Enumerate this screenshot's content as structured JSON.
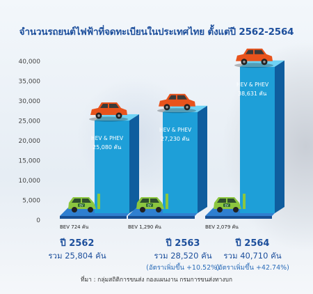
{
  "title": "จำนวนรถยนต์ไฟฟ้าที่จดทะเบียนในประเทศไทย ตั้งแต่ปี 2562-2564",
  "source": "ที่มา : กลุ่มสถิติการขนส่ง กองแผนงาน กรมการขนส่งทางบก",
  "colors": {
    "bar_front": "#1e9fd8",
    "bar_side": "#0f5d9e",
    "bar_top": "#6fd3f5",
    "title": "#1d4f9c",
    "car_orange": "#e8531c",
    "ev_green": "#8cc63f"
  },
  "icons": [
    "orange-suv-car-icon",
    "green-ev-car-icon"
  ],
  "chart_data": {
    "type": "bar",
    "title": "จำนวนรถยนต์ไฟฟ้าที่จดทะเบียนในประเทศไทย ตั้งแต่ปี 2562-2564",
    "categories": [
      "ปี 2562",
      "ปี 2563",
      "ปี 2564"
    ],
    "ylim": [
      0,
      40000
    ],
    "yticks": [
      "0",
      "5,000",
      "10,000",
      "15,000",
      "20,000",
      "25,000",
      "30,000",
      "35,000",
      "40,000"
    ],
    "ytick_values": [
      0,
      5000,
      10000,
      15000,
      20000,
      25000,
      30000,
      35000,
      40000
    ],
    "grid": false,
    "series": [
      {
        "name": "HEV & PHEV",
        "values": [
          25080,
          27230,
          38631
        ],
        "labels": [
          "25,080 คัน",
          "27,230 คัน",
          "38,631 คัน"
        ]
      },
      {
        "name": "BEV",
        "values": [
          724,
          1290,
          2079
        ],
        "labels": [
          "724 คัน",
          "1,290 คัน",
          "2,079 คัน"
        ]
      }
    ],
    "totals": [
      "รวม 25,804 คัน",
      "รวม 28,520 คัน",
      "รวม 40,710 คัน"
    ],
    "growth": [
      "",
      "(อัตราเพิ่มขึ้น +10.52%)",
      "(อัตราเพิ่มขึ้น +42.74%)"
    ]
  }
}
